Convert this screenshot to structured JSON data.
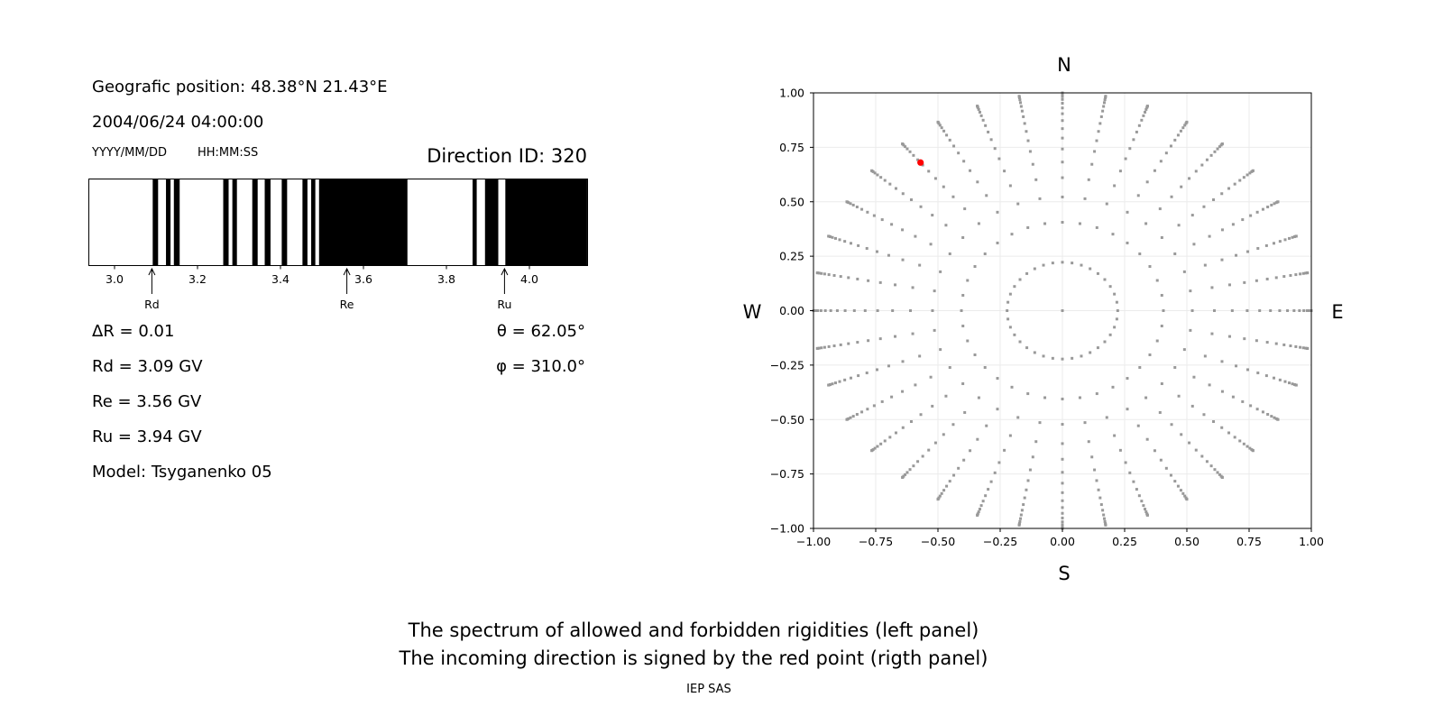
{
  "info": {
    "geo_position": "Geografic position: 48.38°N 21.43°E",
    "datetime": "2004/06/24 04:00:00",
    "date_format": "YYYY/MM/DD",
    "time_format": "HH:MM:SS",
    "direction_id": "Direction ID: 320",
    "delta_r": "ΔR = 0.01",
    "rd": "Rd = 3.09 GV",
    "re": "Re = 3.56 GV",
    "ru": "Ru = 3.94 GV",
    "model": "Model: Tsyganenko 05",
    "theta": "θ = 62.05°",
    "phi": "φ = 310.0°"
  },
  "footer": {
    "line1": "The spectrum of allowed and forbidden rigidities (left panel)",
    "line2": "The incoming direction is signed by the red point (rigth panel)",
    "credit": "IEP SAS"
  },
  "chart_data": [
    {
      "type": "bar",
      "description_units": "GV",
      "xlim": [
        2.937,
        4.139
      ],
      "x_ticks": [
        "3.0",
        "3.2",
        "3.4",
        "3.6",
        "3.8",
        "4.0"
      ],
      "x_tick_values": [
        3.0,
        3.2,
        3.4,
        3.6,
        3.8,
        4.0
      ],
      "forbidden_color": "#000000",
      "allowed_color": "#ffffff",
      "forbidden_intervals": [
        [
          3.092,
          3.105
        ],
        [
          3.124,
          3.135
        ],
        [
          3.143,
          3.157
        ],
        [
          3.262,
          3.275
        ],
        [
          3.284,
          3.295
        ],
        [
          3.332,
          3.345
        ],
        [
          3.362,
          3.376
        ],
        [
          3.403,
          3.416
        ],
        [
          3.453,
          3.465
        ],
        [
          3.474,
          3.484
        ],
        [
          3.493,
          3.706
        ],
        [
          3.863,
          3.873
        ],
        [
          3.893,
          3.925
        ],
        [
          3.942,
          4.139
        ]
      ],
      "markers": [
        {
          "label": "Rd",
          "value": 3.09
        },
        {
          "label": "Re",
          "value": 3.56
        },
        {
          "label": "Ru",
          "value": 3.94
        }
      ]
    },
    {
      "type": "scatter",
      "xlim": [
        -1.0,
        1.0
      ],
      "ylim": [
        -1.0,
        1.0
      ],
      "grid": true,
      "x_ticks": [
        "−1.00",
        "−0.75",
        "−0.50",
        "−0.25",
        "0.00",
        "0.25",
        "0.50",
        "0.75",
        "1.00"
      ],
      "y_ticks": [
        "1.00",
        "0.75",
        "0.50",
        "0.25",
        "0.00",
        "−0.25",
        "−0.50",
        "−0.75",
        "−1.00"
      ],
      "tick_values": [
        -1,
        -0.75,
        -0.5,
        -0.25,
        0,
        0.25,
        0.5,
        0.75,
        1
      ],
      "compass": {
        "north": "N",
        "south": "S",
        "west": "W",
        "east": "E"
      },
      "background_points": {
        "color": "#999999",
        "azimuth_step_deg": 10,
        "cos_zenith": [
          1.0,
          0.975,
          0.914,
          0.853,
          0.792,
          0.731,
          0.67,
          0.61,
          0.549,
          0.488,
          0.427,
          0.366,
          0.305,
          0.244,
          0.183,
          0.122,
          0.061,
          0.0
        ]
      },
      "highlight_point": {
        "x": -0.57,
        "y": 0.68,
        "color": "#ff0000",
        "theta_deg": 62.05,
        "phi_deg": 310.0
      }
    }
  ]
}
